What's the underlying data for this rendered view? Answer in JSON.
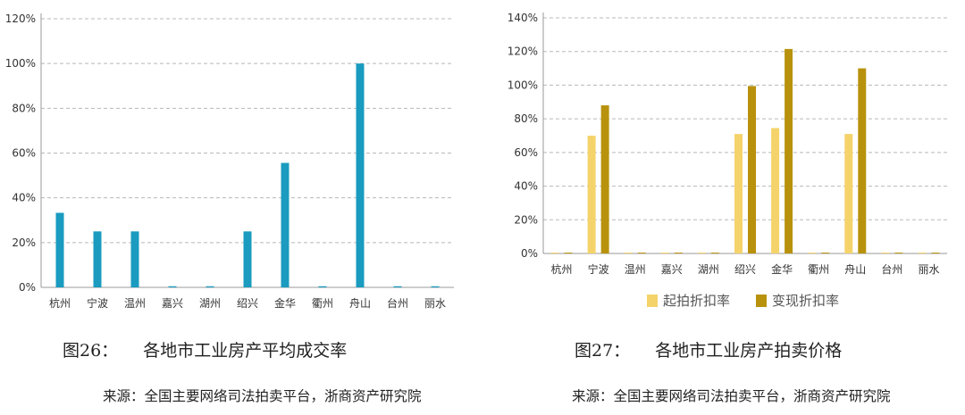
{
  "chart_data": [
    {
      "type": "bar",
      "caption_number": "图26：",
      "caption_text": "各地市工业房产平均成交率",
      "source": "来源：全国主要网络司法拍卖平台，浙商资产研究院",
      "categories": [
        "杭州",
        "宁波",
        "温州",
        "嘉兴",
        "湖州",
        "绍兴",
        "金华",
        "衢州",
        "舟山",
        "台州",
        "丽水"
      ],
      "series": [
        {
          "values": [
            33.3,
            25,
            25,
            0.5,
            0.5,
            25,
            55.6,
            0.5,
            100,
            0.5,
            0.5
          ],
          "color": "#1a9bbf"
        }
      ],
      "ylim": [
        0,
        120
      ],
      "yticks": [
        "0%",
        "20%",
        "40%",
        "60%",
        "80%",
        "100%",
        "120%"
      ],
      "grid": true
    },
    {
      "type": "bar",
      "caption_number": "图27：",
      "caption_text": "各地市工业房产拍卖价格",
      "source": "来源：全国主要网络司法拍卖平台，浙商资产研究院",
      "categories": [
        "杭州",
        "宁波",
        "温州",
        "嘉兴",
        "湖州",
        "绍兴",
        "金华",
        "衢州",
        "舟山",
        "台州",
        "丽水"
      ],
      "series": [
        {
          "name": "起拍折扣率",
          "values": [
            0.5,
            70,
            0.5,
            0.5,
            0.5,
            71,
            74.5,
            0.5,
            71,
            0.5,
            0.5
          ],
          "color": "#f5d36b"
        },
        {
          "name": "变现折扣率",
          "values": [
            0.5,
            88,
            0.5,
            0.5,
            0.5,
            99.5,
            121.5,
            0.5,
            110,
            0.5,
            0.5
          ],
          "color": "#b8920d"
        }
      ],
      "ylim": [
        0,
        140
      ],
      "yticks": [
        "0%",
        "20%",
        "40%",
        "60%",
        "80%",
        "100%",
        "120%",
        "140%"
      ],
      "grid": true,
      "legend": "bottom"
    }
  ]
}
